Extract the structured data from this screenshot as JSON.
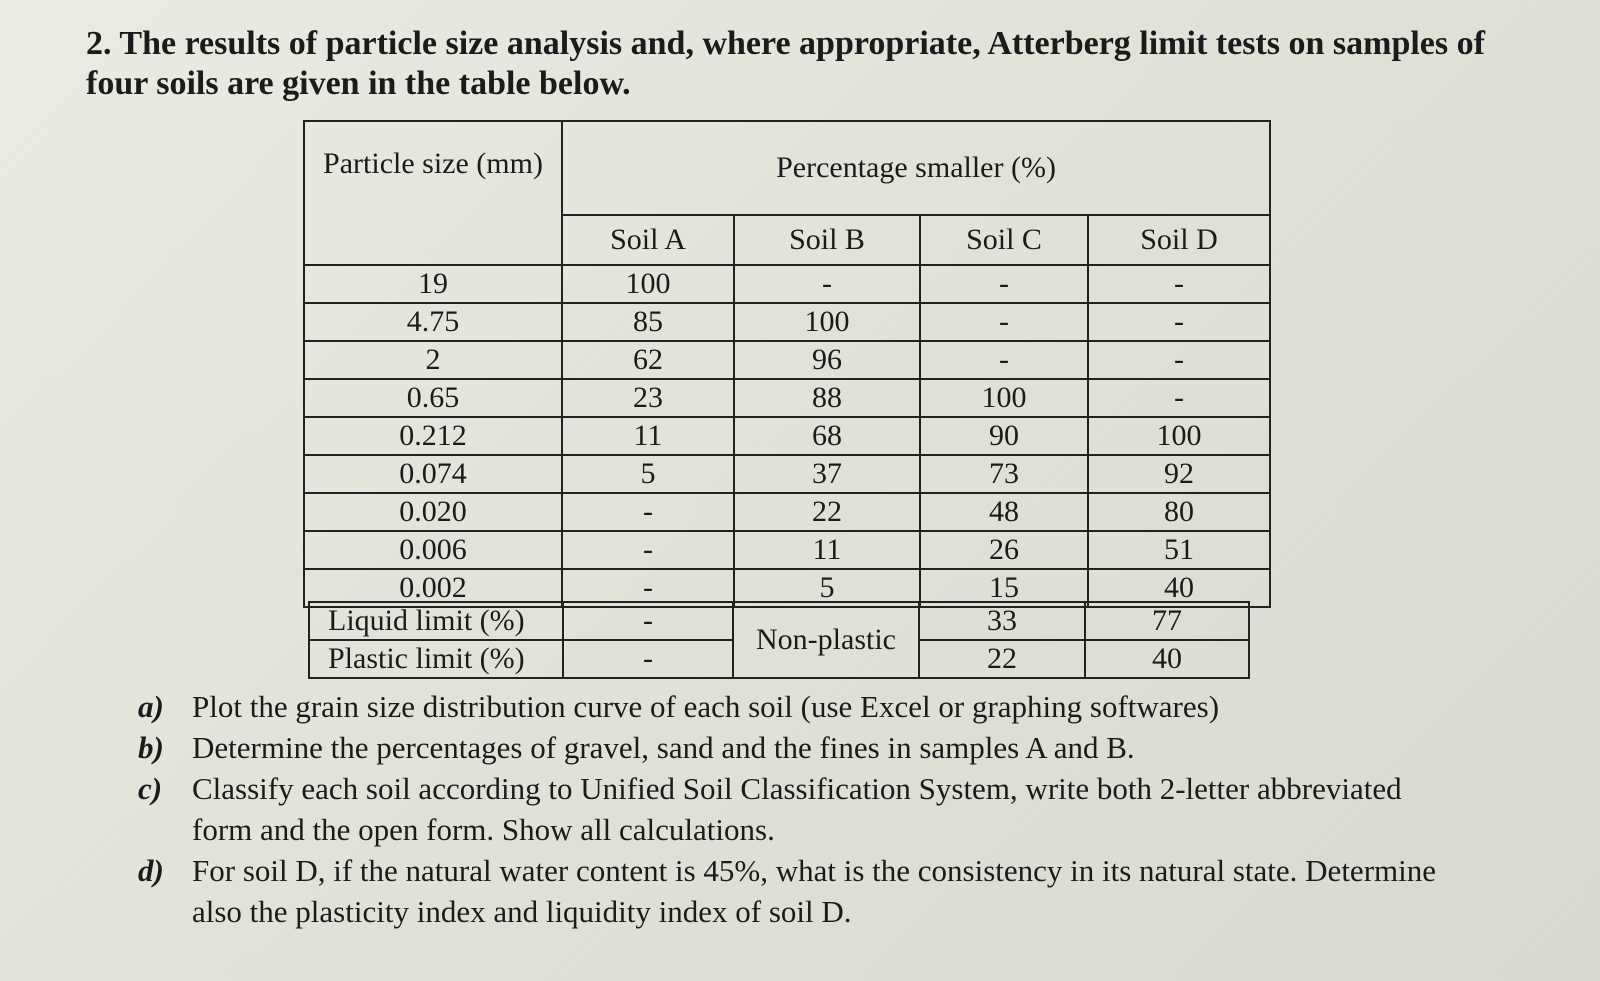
{
  "question": {
    "number": "2.",
    "text": "The results of particle size analysis and, where appropriate, Atterberg limit tests on samples of four soils are given in the table below."
  },
  "table": {
    "particle_size_header": "Particle size (mm)",
    "percentage_header": "Percentage smaller (%)",
    "soils": [
      "Soil A",
      "Soil B",
      "Soil C",
      "Soil D"
    ],
    "rows": [
      {
        "size": "19",
        "values": [
          "100",
          "-",
          "-",
          "-"
        ]
      },
      {
        "size": "4.75",
        "values": [
          "85",
          "100",
          "-",
          "-"
        ]
      },
      {
        "size": "2",
        "values": [
          "62",
          "96",
          "-",
          "-"
        ]
      },
      {
        "size": "0.65",
        "values": [
          "23",
          "88",
          "100",
          "-"
        ]
      },
      {
        "size": "0.212",
        "values": [
          "11",
          "68",
          "90",
          "100"
        ]
      },
      {
        "size": "0.074",
        "values": [
          "5",
          "37",
          "73",
          "92"
        ]
      },
      {
        "size": "0.020",
        "values": [
          "-",
          "22",
          "48",
          "80"
        ]
      },
      {
        "size": "0.006",
        "values": [
          "-",
          "11",
          "26",
          "51"
        ]
      },
      {
        "size": "0.002",
        "values": [
          "-",
          "5",
          "15",
          "40"
        ]
      }
    ]
  },
  "limits": {
    "liquid_label": "Liquid limit (%)",
    "plastic_label": "Plastic limit (%)",
    "soil_a_liquid": "-",
    "soil_a_plastic": "-",
    "soil_b": "Non-plastic",
    "soil_c_liquid": "33",
    "soil_c_plastic": "22",
    "soil_d_liquid": "77",
    "soil_d_plastic": "40"
  },
  "tasks": [
    {
      "label": "a)",
      "text": "Plot the grain size distribution curve of each soil (use Excel or graphing softwares)"
    },
    {
      "label": "b)",
      "text": "Determine the percentages of gravel, sand and the fines in samples A and B."
    },
    {
      "label": "c)",
      "text": "Classify each soil according to Unified Soil Classification System, write both 2-letter abbreviated form and the open form. Show all calculations."
    },
    {
      "label": "d)",
      "text": "For soil D, if the natural water content is 45%, what is the consistency in its natural state. Determine also the plasticity index and liquidity index of soil D."
    }
  ]
}
